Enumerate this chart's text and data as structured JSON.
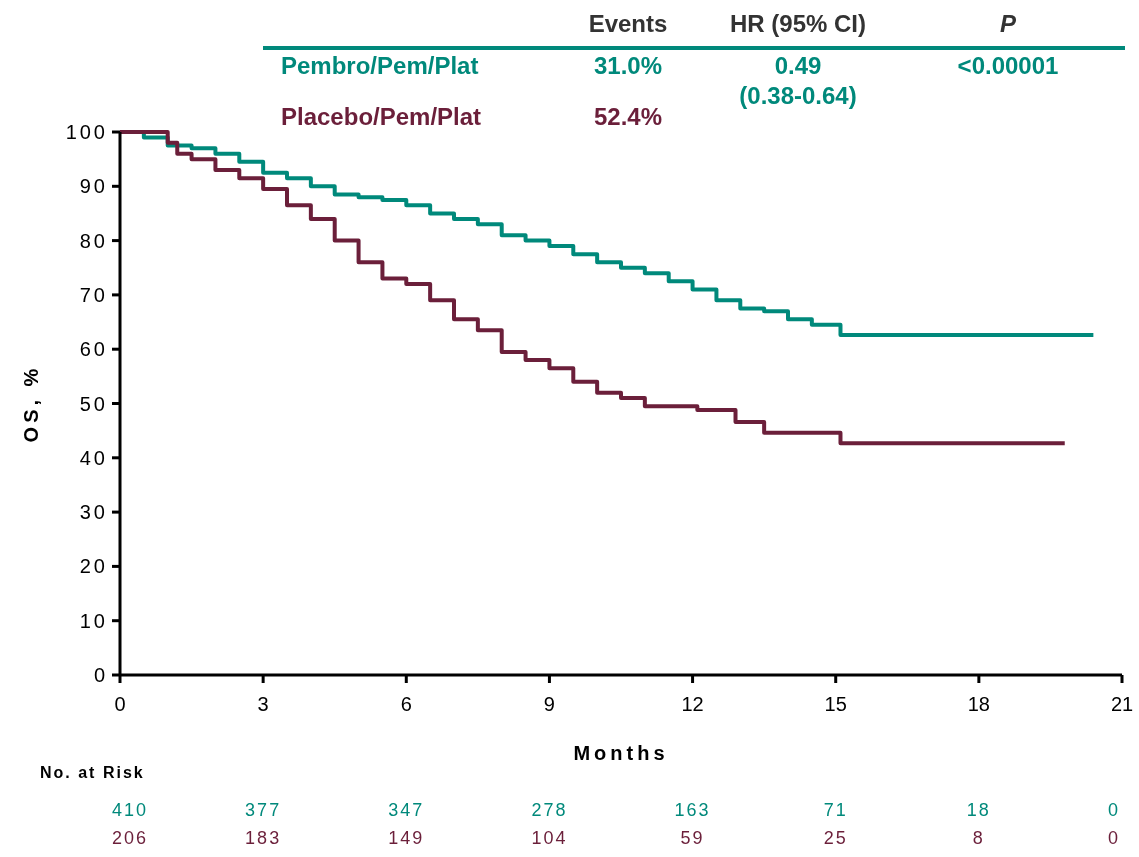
{
  "chart_data": {
    "type": "step",
    "xlabel": "Months",
    "ylabel": "OS, %",
    "legend": "top",
    "xlim": [
      0,
      21
    ],
    "xticks": [
      0,
      3,
      6,
      9,
      12,
      15,
      18,
      21
    ],
    "ylim": [
      0,
      100
    ],
    "yticks": [
      0,
      10,
      20,
      30,
      40,
      50,
      60,
      70,
      80,
      90,
      100
    ],
    "annotations": [
      "Events",
      "HR (95% CI)",
      "P",
      "31.0%",
      "0.49\n(0.38-0.64)",
      "<0.00001",
      "52.4%",
      "No. at Risk",
      "410 377 347 278 163 71 18 0",
      "206 183 149 104 59 25 8 0"
    ],
    "series": [
      {
        "name": "Pembro/Pem/Plat",
        "color": "#00897b",
        "x": [
          0,
          0.5,
          1,
          1.5,
          2,
          2.5,
          3,
          3.5,
          4,
          4.5,
          5,
          5.5,
          6,
          6.5,
          7,
          7.5,
          8,
          8.5,
          9,
          9.5,
          10,
          10.5,
          11,
          11.5,
          12,
          12.5,
          13,
          13.5,
          14,
          14.5,
          15.1,
          20.4
        ],
        "values": [
          100,
          99,
          97.5,
          97,
          96,
          94.5,
          92.5,
          91.5,
          90,
          88.5,
          88,
          87.5,
          86.5,
          85,
          84,
          83,
          81,
          80,
          79,
          77.5,
          76,
          75,
          74,
          72.5,
          71,
          69,
          67.5,
          67,
          65.5,
          64.5,
          62.6,
          62.6
        ]
      },
      {
        "name": "Placebo/Pem/Plat",
        "color": "#6b1f3a",
        "x": [
          0,
          1,
          1.2,
          1.5,
          2,
          2.5,
          3,
          3.5,
          4,
          4.5,
          5,
          5.5,
          6,
          6.5,
          7,
          7.5,
          8,
          8.5,
          9,
          9.5,
          10,
          10.5,
          11,
          11.5,
          12.1,
          12.9,
          13.5,
          15.1,
          19.8
        ],
        "values": [
          100,
          98,
          96,
          95,
          93,
          91.5,
          89.5,
          86.5,
          84,
          80,
          76,
          73,
          72,
          69,
          65.5,
          63.5,
          59.5,
          58,
          56.5,
          54,
          52,
          51,
          49.5,
          49.5,
          48.8,
          46.6,
          44.6,
          42.7,
          42.7
        ]
      }
    ]
  }
}
